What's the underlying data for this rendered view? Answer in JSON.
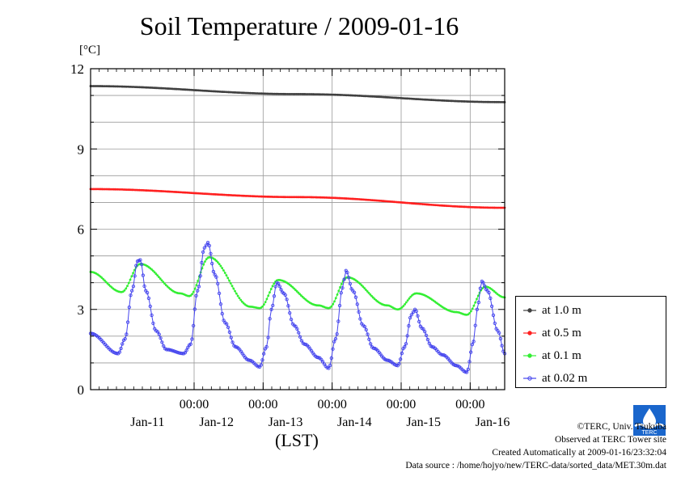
{
  "title": "Soil Temperature / 2009-01-16",
  "unit_label": "[°C]",
  "xaxis_label": "(LST)",
  "credits": {
    "copyright": "©TERC, Univ. Tsukuba",
    "site": "Observed at TERC Tower site",
    "created": "Created Automatically at 2009-01-16/23:32:04",
    "source": "Data source : /home/hojyo/new/TERC-data/sorted_data/MET.30m.dat"
  },
  "logo_text": "TERC",
  "chart_data": {
    "type": "line",
    "title": "Soil Temperature / 2009-01-16",
    "ylabel": "[°C]",
    "xlabel": "(LST)",
    "ylim": [
      0,
      12
    ],
    "yticks": [
      0,
      3,
      6,
      9,
      12
    ],
    "xlim_days": [
      -0.5,
      5.5
    ],
    "midnight_tick_label": "00:00",
    "x_major_ticks_days": [
      1,
      2,
      3,
      4,
      5
    ],
    "date_labels": [
      {
        "label": "Jan-11",
        "day": 0.5
      },
      {
        "label": "Jan-12",
        "day": 1.5
      },
      {
        "label": "Jan-13",
        "day": 2.5
      },
      {
        "label": "Jan-14",
        "day": 3.5
      },
      {
        "label": "Jan-15",
        "day": 4.5
      },
      {
        "label": "Jan-16",
        "day": 5.5
      }
    ],
    "grid": true,
    "legend_position": "right",
    "series": [
      {
        "name": "at 1.0 m",
        "color": "#404040",
        "marker": "dot",
        "points": [
          [
            -0.5,
            11.35
          ],
          [
            2.5,
            11.05
          ],
          [
            5.5,
            10.75
          ]
        ]
      },
      {
        "name": "at 0.5 m",
        "color": "#ff2020",
        "marker": "dot",
        "points": [
          [
            -0.5,
            7.5
          ],
          [
            2.5,
            7.2
          ],
          [
            5.5,
            6.8
          ]
        ]
      },
      {
        "name": "at 0.1 m",
        "color": "#33ee33",
        "marker": "dot",
        "points": [
          [
            -0.5,
            4.4
          ],
          [
            -0.05,
            3.65
          ],
          [
            0.22,
            4.7
          ],
          [
            0.8,
            3.6
          ],
          [
            0.93,
            3.5
          ],
          [
            1.22,
            4.95
          ],
          [
            1.82,
            3.1
          ],
          [
            1.95,
            3.05
          ],
          [
            2.22,
            4.1
          ],
          [
            2.8,
            3.15
          ],
          [
            2.95,
            3.05
          ],
          [
            3.22,
            4.2
          ],
          [
            3.8,
            3.15
          ],
          [
            3.95,
            3.0
          ],
          [
            4.22,
            3.6
          ],
          [
            4.8,
            2.9
          ],
          [
            4.95,
            2.8
          ],
          [
            5.22,
            3.85
          ],
          [
            5.5,
            3.45
          ]
        ]
      },
      {
        "name": "at 0.02 m",
        "color": "#4444ee",
        "marker": "circle",
        "points": [
          [
            -0.5,
            2.1
          ],
          [
            -0.1,
            1.35
          ],
          [
            0.0,
            1.9
          ],
          [
            0.1,
            3.7
          ],
          [
            0.18,
            4.8
          ],
          [
            0.22,
            4.85
          ],
          [
            0.3,
            3.7
          ],
          [
            0.45,
            2.2
          ],
          [
            0.6,
            1.5
          ],
          [
            0.85,
            1.35
          ],
          [
            0.95,
            1.7
          ],
          [
            1.05,
            3.7
          ],
          [
            1.15,
            5.3
          ],
          [
            1.2,
            5.5
          ],
          [
            1.3,
            4.3
          ],
          [
            1.45,
            2.5
          ],
          [
            1.6,
            1.6
          ],
          [
            1.8,
            1.1
          ],
          [
            1.95,
            0.85
          ],
          [
            2.05,
            1.6
          ],
          [
            2.12,
            3.0
          ],
          [
            2.2,
            4.0
          ],
          [
            2.3,
            3.6
          ],
          [
            2.45,
            2.4
          ],
          [
            2.6,
            1.7
          ],
          [
            2.8,
            1.2
          ],
          [
            2.95,
            0.8
          ],
          [
            3.05,
            1.9
          ],
          [
            3.15,
            3.8
          ],
          [
            3.2,
            4.45
          ],
          [
            3.3,
            3.7
          ],
          [
            3.45,
            2.4
          ],
          [
            3.6,
            1.55
          ],
          [
            3.8,
            1.1
          ],
          [
            3.95,
            0.9
          ],
          [
            4.05,
            1.6
          ],
          [
            4.15,
            2.8
          ],
          [
            4.2,
            3.0
          ],
          [
            4.3,
            2.3
          ],
          [
            4.45,
            1.6
          ],
          [
            4.6,
            1.3
          ],
          [
            4.8,
            0.9
          ],
          [
            4.95,
            0.65
          ],
          [
            5.05,
            1.8
          ],
          [
            5.1,
            3.0
          ],
          [
            5.17,
            4.05
          ],
          [
            5.25,
            3.7
          ],
          [
            5.4,
            2.2
          ],
          [
            5.5,
            1.35
          ]
        ]
      }
    ]
  }
}
